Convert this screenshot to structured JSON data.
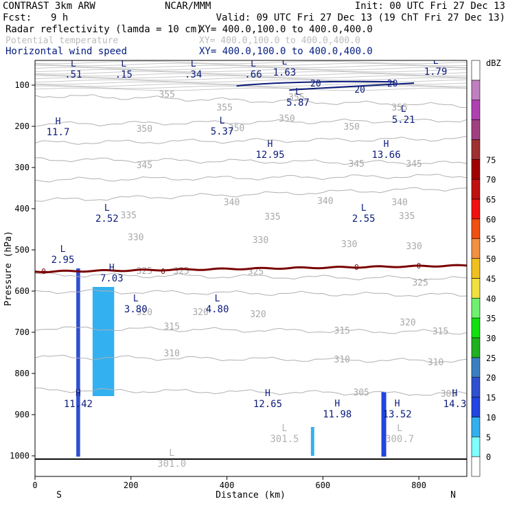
{
  "header": {
    "model": "CONTRAST   3km ARW",
    "center": "NCAR/MMM",
    "init": "Init: 00 UTC Fri 27 Dec 13",
    "fcst_label": "Fcst:",
    "fcst_value": "9 h",
    "valid": "Valid: 09 UTC Fri 27 Dec 13 (19 ChT Fri 27 Dec 13)",
    "fields": [
      {
        "name": "Radar reflectivity (lamda = 10 cm)",
        "xy": "XY= 400.0,100.0 to 400.0,400.0",
        "color": "#000000"
      },
      {
        "name": "Potential temperature",
        "xy": "XY= 400.0,100.0 to 400.0,400.0",
        "color": "#bbbbbb"
      },
      {
        "name": "Horizontal wind speed",
        "xy": "XY= 400.0,100.0 to 400.0,400.0",
        "color": "#001a80"
      }
    ]
  },
  "chart_data": {
    "type": "cross-section",
    "xlabel": "Distance (km)",
    "ylabel": "Pressure (hPa)",
    "xlim": [
      0,
      900
    ],
    "ylim": [
      1050,
      40
    ],
    "x_ticks": [
      0,
      200,
      400,
      600,
      800
    ],
    "y_ticks": [
      100,
      200,
      300,
      400,
      500,
      600,
      700,
      800,
      900,
      1000
    ],
    "x_end_labels": {
      "left": "S",
      "right": "N"
    },
    "colorbar": {
      "unit": "dBZ",
      "levels": [
        0,
        5,
        10,
        15,
        20,
        25,
        30,
        35,
        40,
        45,
        50,
        55,
        60,
        65,
        70,
        75
      ],
      "colors": [
        "#ffffff",
        "#7fffff",
        "#33b0f0",
        "#2244e0",
        "#3050d0",
        "#3a80c0",
        "#20b020",
        "#10e010",
        "#70f070",
        "#f0e040",
        "#f0c020",
        "#f09040",
        "#f05010",
        "#f01010",
        "#c01010",
        "#a00000",
        "#a03030",
        "#a04080",
        "#b040b0",
        "#c080c0",
        "#ffffff"
      ]
    },
    "theta_isolines": [
      {
        "label": "355",
        "p": [
          125,
          150
        ]
      },
      {
        "label": "350",
        "p": [
          195,
          185
        ]
      },
      {
        "label": "345",
        "p": [
          240,
          230
        ]
      },
      {
        "label": "340",
        "p": [
          280,
          290
        ]
      },
      {
        "label": "335",
        "p": [
          330,
          320
        ]
      },
      {
        "label": "330",
        "p": [
          380,
          350
        ]
      },
      {
        "label": "325",
        "p": [
          560,
          570
        ]
      },
      {
        "label": "320",
        "p": [
          600,
          610
        ]
      },
      {
        "label": "315",
        "p": [
          690,
          700
        ]
      },
      {
        "label": "310",
        "p": [
          760,
          770
        ]
      },
      {
        "label": "305",
        "p": [
          840,
          850
        ]
      }
    ],
    "theta_labels": [
      {
        "text": "355",
        "x": 275,
        "p": 122
      },
      {
        "text": "355",
        "x": 545,
        "p": 128
      },
      {
        "text": "355",
        "x": 760,
        "p": 153
      },
      {
        "text": "355",
        "x": 395,
        "p": 153
      },
      {
        "text": "350",
        "x": 525,
        "p": 180
      },
      {
        "text": "350",
        "x": 660,
        "p": 200
      },
      {
        "text": "350",
        "x": 420,
        "p": 203
      },
      {
        "text": "350",
        "x": 228,
        "p": 205
      },
      {
        "text": "345",
        "x": 228,
        "p": 293
      },
      {
        "text": "345",
        "x": 670,
        "p": 290
      },
      {
        "text": "345",
        "x": 790,
        "p": 290
      },
      {
        "text": "340",
        "x": 410,
        "p": 383
      },
      {
        "text": "340",
        "x": 605,
        "p": 380
      },
      {
        "text": "340",
        "x": 760,
        "p": 383
      },
      {
        "text": "335",
        "x": 195,
        "p": 415
      },
      {
        "text": "335",
        "x": 495,
        "p": 418
      },
      {
        "text": "335",
        "x": 775,
        "p": 417
      },
      {
        "text": "330",
        "x": 210,
        "p": 468
      },
      {
        "text": "330",
        "x": 470,
        "p": 475
      },
      {
        "text": "330",
        "x": 655,
        "p": 485
      },
      {
        "text": "330",
        "x": 790,
        "p": 490
      },
      {
        "text": "325",
        "x": 228,
        "p": 550
      },
      {
        "text": "325",
        "x": 305,
        "p": 550
      },
      {
        "text": "325",
        "x": 460,
        "p": 552
      },
      {
        "text": "325",
        "x": 803,
        "p": 578
      },
      {
        "text": "320",
        "x": 228,
        "p": 650
      },
      {
        "text": "320",
        "x": 345,
        "p": 650
      },
      {
        "text": "320",
        "x": 465,
        "p": 655
      },
      {
        "text": "320",
        "x": 777,
        "p": 675
      },
      {
        "text": "315",
        "x": 285,
        "p": 685
      },
      {
        "text": "315",
        "x": 640,
        "p": 695
      },
      {
        "text": "315",
        "x": 845,
        "p": 697
      },
      {
        "text": "310",
        "x": 285,
        "p": 750
      },
      {
        "text": "310",
        "x": 640,
        "p": 765
      },
      {
        "text": "310",
        "x": 835,
        "p": 772
      },
      {
        "text": "305",
        "x": 680,
        "p": 845
      },
      {
        "text": "305",
        "x": 862,
        "p": 848
      }
    ],
    "zero_line": {
      "label": "0",
      "color": "#7a0000"
    },
    "zero_labels": [
      {
        "text": "0",
        "x": 18,
        "p": 552
      },
      {
        "text": "0",
        "x": 267,
        "p": 552
      },
      {
        "text": "0",
        "x": 670,
        "p": 542
      },
      {
        "text": "0",
        "x": 800,
        "p": 538
      }
    ],
    "wind_contours": [
      {
        "text": "20",
        "x": 585,
        "p": 95
      },
      {
        "text": "20",
        "x": 677,
        "p": 110
      },
      {
        "text": "20",
        "x": 745,
        "p": 95
      }
    ],
    "wind_extrema": [
      {
        "kind": "L",
        "value": ".51",
        "x": 80,
        "p": 60
      },
      {
        "kind": "L",
        "value": ".15",
        "x": 185,
        "p": 60
      },
      {
        "kind": "L",
        "value": ".34",
        "x": 330,
        "p": 60
      },
      {
        "kind": "L",
        "value": ".66",
        "x": 455,
        "p": 60
      },
      {
        "kind": "L",
        "value": "1.63",
        "x": 520,
        "p": 55
      },
      {
        "kind": "L",
        "value": "1.79",
        "x": 835,
        "p": 53
      },
      {
        "kind": "L",
        "value": "5.87",
        "x": 548,
        "p": 128
      },
      {
        "kind": "L",
        "value": "5.21",
        "x": 768,
        "p": 170
      },
      {
        "kind": "H",
        "value": "11.7",
        "x": 48,
        "p": 200
      },
      {
        "kind": "L",
        "value": "5.37",
        "x": 390,
        "p": 198
      },
      {
        "kind": "H",
        "value": "12.95",
        "x": 490,
        "p": 255
      },
      {
        "kind": "H",
        "value": "13.66",
        "x": 732,
        "p": 255
      },
      {
        "kind": "L",
        "value": "2.52",
        "x": 150,
        "p": 410
      },
      {
        "kind": "L",
        "value": "2.55",
        "x": 685,
        "p": 410
      },
      {
        "kind": "L",
        "value": "2.95",
        "x": 58,
        "p": 510
      },
      {
        "kind": "H",
        "value": "7.03",
        "x": 160,
        "p": 555
      },
      {
        "kind": "L",
        "value": "3.80",
        "x": 210,
        "p": 630
      },
      {
        "kind": "L",
        "value": "4.80",
        "x": 380,
        "p": 630
      },
      {
        "kind": "H",
        "value": "11.42",
        "x": 90,
        "p": 860
      },
      {
        "kind": "H",
        "value": "12.65",
        "x": 485,
        "p": 860
      },
      {
        "kind": "H",
        "value": "11.98",
        "x": 630,
        "p": 885
      },
      {
        "kind": "H",
        "value": "13.52",
        "x": 755,
        "p": 885
      },
      {
        "kind": "H",
        "value": "14.3",
        "x": 875,
        "p": 860
      }
    ],
    "theta_extrema": [
      {
        "kind": "L",
        "value": "301.5",
        "x": 520,
        "p": 945
      },
      {
        "kind": "L",
        "value": "300.7",
        "x": 760,
        "p": 945
      },
      {
        "kind": "L",
        "value": "301.0",
        "x": 285,
        "p": 1005
      }
    ],
    "reflectivity_cells": [
      {
        "x0": 86,
        "x1": 94,
        "p_top": 545,
        "p_bot": 1002,
        "dbz": 15
      },
      {
        "x0": 120,
        "x1": 165,
        "p_top": 590,
        "p_bot": 855,
        "dbz": 5
      },
      {
        "x0": 575,
        "x1": 582,
        "p_top": 930,
        "p_bot": 1000,
        "dbz": 5
      },
      {
        "x0": 722,
        "x1": 732,
        "p_top": 845,
        "p_bot": 1002,
        "dbz": 10
      }
    ],
    "surface_p": 1008
  }
}
